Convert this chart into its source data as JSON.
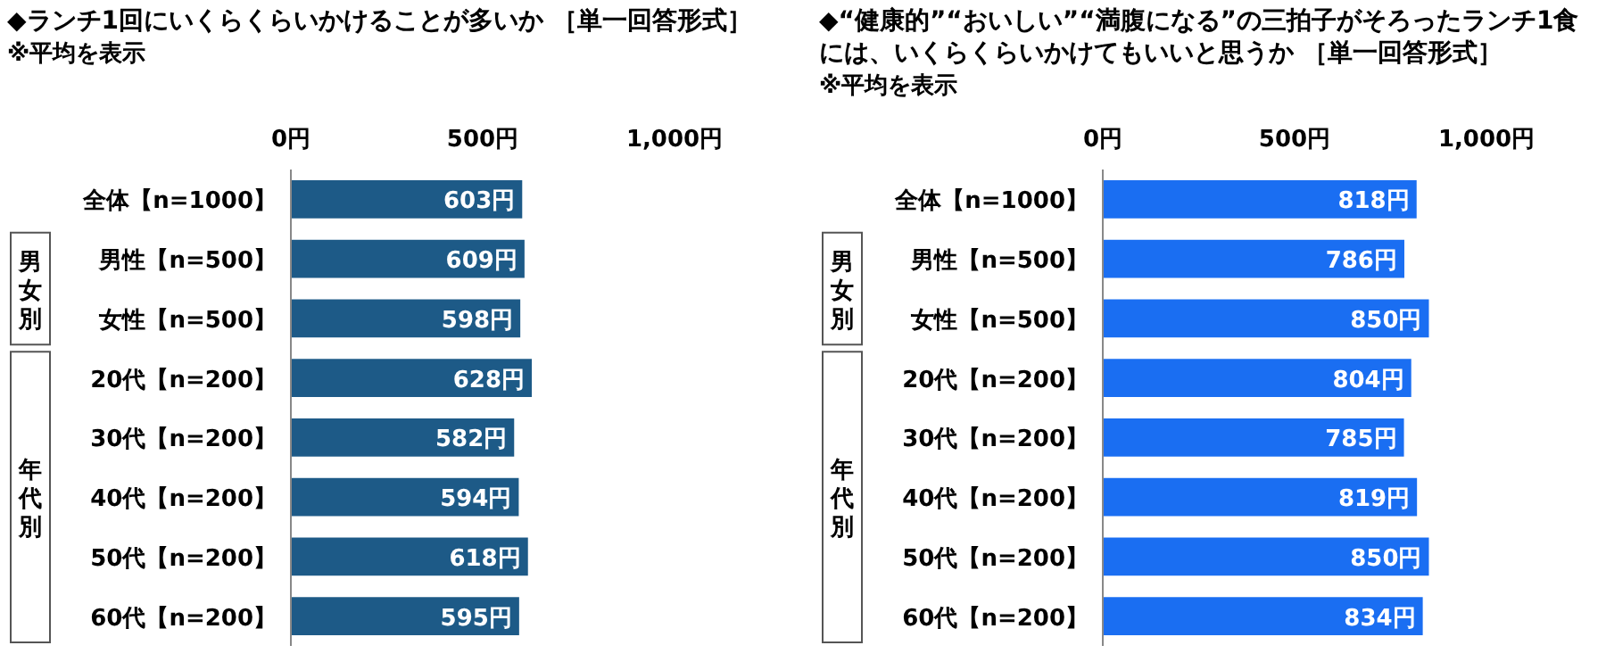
{
  "chart_data": [
    {
      "type": "bar",
      "orientation": "horizontal",
      "title": "◆ランチ1回にいくらくらいかけることが多いか ［単一回答形式］",
      "subtitle": "※平均を表示",
      "categories": [
        "全体【n=1000】",
        "男性【n=500】",
        "女性【n=500】",
        "20代【n=200】",
        "30代【n=200】",
        "40代【n=200】",
        "50代【n=200】",
        "60代【n=200】"
      ],
      "values": [
        603,
        609,
        598,
        628,
        582,
        594,
        618,
        595
      ],
      "color": "#1d5a87",
      "xlim": [
        0,
        1000
      ],
      "xticks": [
        {
          "value": 0,
          "label": "0円"
        },
        {
          "value": 500,
          "label": "500円"
        },
        {
          "value": 1000,
          "label": "1,000円"
        }
      ],
      "value_labels": [
        "603円",
        "609円",
        "598円",
        "628円",
        "582円",
        "594円",
        "618円",
        "595円"
      ],
      "annotations": [
        "男女別",
        "年代別"
      ]
    },
    {
      "type": "bar",
      "orientation": "horizontal",
      "title": "◆“健康的”“おいしい”“満腹になる”の三拍子がそろったランチ1食には、いくらくらいかけてもいいと思うか ［単一回答形式］",
      "subtitle": "※平均を表示",
      "categories": [
        "全体【n=1000】",
        "男性【n=500】",
        "女性【n=500】",
        "20代【n=200】",
        "30代【n=200】",
        "40代【n=200】",
        "50代【n=200】",
        "60代【n=200】"
      ],
      "values": [
        818,
        786,
        850,
        804,
        785,
        819,
        850,
        834
      ],
      "color": "#1a6ef2",
      "xlim": [
        0,
        1000
      ],
      "xticks": [
        {
          "value": 0,
          "label": "0円"
        },
        {
          "value": 500,
          "label": "500円"
        },
        {
          "value": 1000,
          "label": "1,000円"
        }
      ],
      "value_labels": [
        "818円",
        "786円",
        "850円",
        "804円",
        "785円",
        "819円",
        "850円",
        "834円"
      ],
      "annotations": [
        "男女別",
        "年代別"
      ]
    }
  ]
}
